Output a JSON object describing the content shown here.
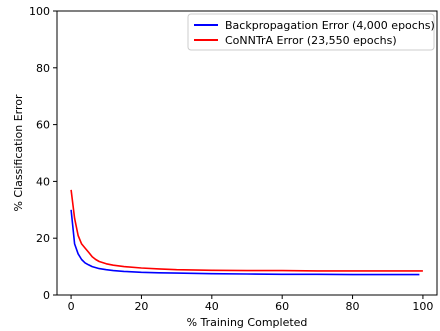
{
  "chart_data": {
    "type": "line",
    "title": "",
    "xlabel": "% Training Completed",
    "ylabel": "% Classification Error",
    "xlim": [
      -4,
      104
    ],
    "ylim": [
      0,
      100
    ],
    "xticks": [
      0,
      20,
      40,
      60,
      80,
      100
    ],
    "yticks": [
      0,
      20,
      40,
      60,
      80,
      100
    ],
    "grid": false,
    "legend_position": "top-right",
    "series": [
      {
        "name": "Backpropagation Error (4,000 epochs)",
        "color": "#0000ff",
        "x": [
          0,
          1,
          2,
          3,
          4,
          5,
          6,
          8,
          10,
          12,
          15,
          20,
          25,
          30,
          40,
          50,
          60,
          70,
          80,
          90,
          99
        ],
        "y": [
          30,
          18,
          14.5,
          12.5,
          11.3,
          10.6,
          10,
          9.3,
          8.9,
          8.6,
          8.3,
          8,
          7.8,
          7.7,
          7.5,
          7.4,
          7.3,
          7.3,
          7.2,
          7.2,
          7.2
        ]
      },
      {
        "name": "CoNNTrA Error (23,550 epochs)",
        "color": "#ff0000",
        "x": [
          0,
          1,
          2,
          3,
          4,
          5,
          6,
          7,
          8,
          10,
          12,
          15,
          20,
          25,
          30,
          40,
          50,
          60,
          70,
          80,
          90,
          100
        ],
        "y": [
          37,
          27,
          21,
          18,
          16.5,
          15,
          13.5,
          12.5,
          11.8,
          11,
          10.5,
          10,
          9.5,
          9.2,
          8.9,
          8.7,
          8.6,
          8.6,
          8.5,
          8.5,
          8.5,
          8.5
        ]
      }
    ]
  }
}
